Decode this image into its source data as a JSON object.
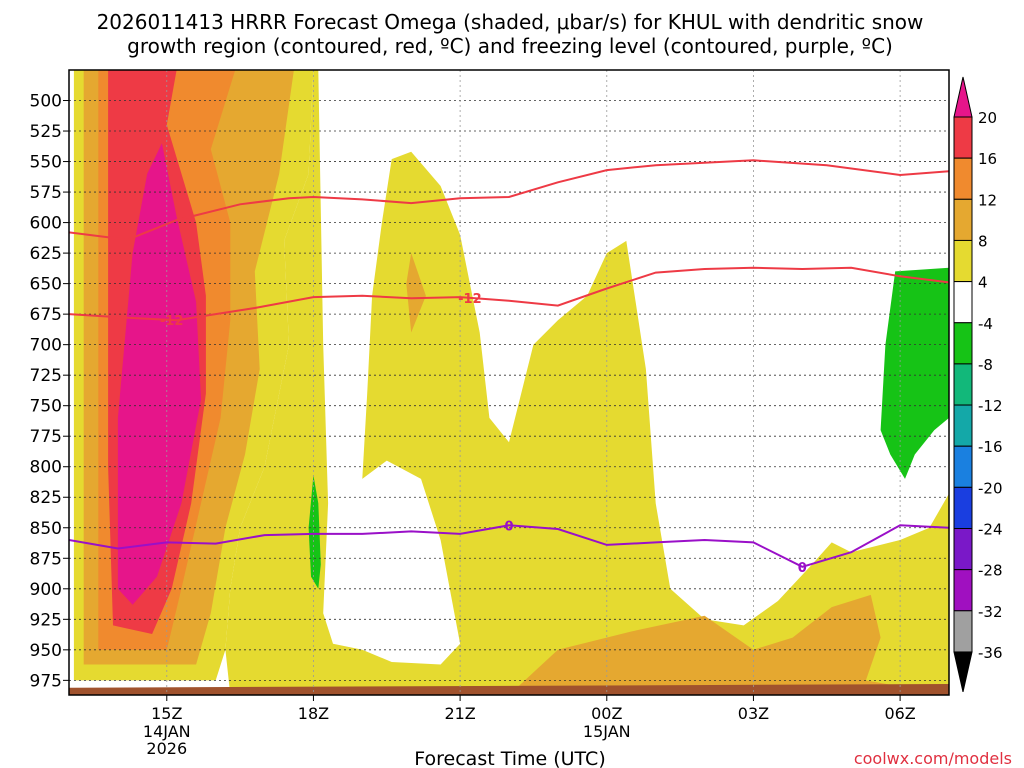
{
  "chart_data": {
    "type": "contour-crosssection",
    "title_line1": "2026011413 HRRR Forecast Omega (shaded, μbar/s) for KHUL with dendritic snow",
    "title_line2": "growth region (contoured, red, ºC) and freezing level (contoured, purple, ºC)",
    "xlabel": "Forecast Time (UTC)",
    "credit": "coolwx.com/models",
    "x_range_hours": [
      13.0,
      31.0
    ],
    "x_ticks": [
      {
        "hour": 15,
        "label": "15Z",
        "sub1": "14JAN",
        "sub2": "2026"
      },
      {
        "hour": 18,
        "label": "18Z",
        "sub1": "",
        "sub2": ""
      },
      {
        "hour": 21,
        "label": "21Z",
        "sub1": "",
        "sub2": ""
      },
      {
        "hour": 24,
        "label": "00Z",
        "sub1": "15JAN",
        "sub2": ""
      },
      {
        "hour": 27,
        "label": "03Z",
        "sub1": "",
        "sub2": ""
      },
      {
        "hour": 30,
        "label": "06Z",
        "sub1": "",
        "sub2": ""
      }
    ],
    "y_range_hPa": [
      475,
      987
    ],
    "y_ticks": [
      500,
      525,
      550,
      575,
      600,
      625,
      650,
      675,
      700,
      725,
      750,
      775,
      800,
      825,
      850,
      875,
      900,
      925,
      950,
      975
    ],
    "colorbar": {
      "labels": [
        "20",
        "16",
        "12",
        "8",
        "4",
        "-4",
        "-8",
        "-12",
        "-16",
        "-20",
        "-24",
        "-28",
        "-32",
        "-36"
      ],
      "colors": [
        "#ee3a45",
        "#f08a2e",
        "#e5a830",
        "#e5da30",
        "#ffffff",
        "#16c316",
        "#12b87a",
        "#14a8a8",
        "#1a80e0",
        "#1a3ee0",
        "#7a18c8",
        "#a010c0",
        "#a0a0a0"
      ],
      "top_color": "#e6158a",
      "bottom_color": "#000000"
    },
    "series": [
      {
        "name": "-12 C isotherm (upper)",
        "color": "#ee3a45",
        "points": [
          [
            13.0,
            608
          ],
          [
            14.2,
            614
          ],
          [
            15.2,
            598
          ],
          [
            16.5,
            585
          ],
          [
            17.5,
            580
          ],
          [
            18.0,
            579
          ],
          [
            19.0,
            581
          ],
          [
            20.0,
            584
          ],
          [
            21.0,
            580
          ],
          [
            22.0,
            579
          ],
          [
            23.0,
            567
          ],
          [
            24.0,
            557
          ],
          [
            25.0,
            553
          ],
          [
            27.0,
            549
          ],
          [
            28.5,
            553
          ],
          [
            30.0,
            561
          ],
          [
            31.0,
            558
          ]
        ]
      },
      {
        "name": "-12 C isotherm (lower)",
        "color": "#ee3a45",
        "label": "-12",
        "points": [
          [
            13.0,
            675
          ],
          [
            14.2,
            678
          ],
          [
            15.2,
            680
          ],
          [
            16.8,
            670
          ],
          [
            18.0,
            661
          ],
          [
            19.0,
            660
          ],
          [
            20.0,
            662
          ],
          [
            21.0,
            661
          ],
          [
            22.0,
            664
          ],
          [
            23.0,
            668
          ],
          [
            24.0,
            654
          ],
          [
            25.0,
            641
          ],
          [
            26.0,
            638
          ],
          [
            27.0,
            637
          ],
          [
            28.0,
            638
          ],
          [
            29.0,
            637
          ],
          [
            30.0,
            644
          ],
          [
            31.0,
            649
          ]
        ]
      },
      {
        "name": "0 C freezing level",
        "color": "#9a10c8",
        "label": "0",
        "points": [
          [
            13.0,
            860
          ],
          [
            14.0,
            867
          ],
          [
            15.0,
            862
          ],
          [
            16.0,
            863
          ],
          [
            17.0,
            856
          ],
          [
            18.0,
            855
          ],
          [
            19.0,
            855
          ],
          [
            20.0,
            853
          ],
          [
            21.0,
            855
          ],
          [
            22.0,
            848
          ],
          [
            23.0,
            851
          ],
          [
            24.0,
            864
          ],
          [
            25.0,
            862
          ],
          [
            26.0,
            860
          ],
          [
            27.0,
            862
          ],
          [
            28.0,
            882
          ],
          [
            29.0,
            870
          ],
          [
            30.0,
            848
          ],
          [
            31.0,
            850
          ]
        ]
      }
    ],
    "shaded_regions": [
      {
        "category": "4 to 8",
        "color": "#e5da30",
        "points": [
          [
            13.1,
            475
          ],
          [
            18.0,
            475
          ],
          [
            17.9,
            560
          ],
          [
            17.4,
            615
          ],
          [
            17.5,
            700
          ],
          [
            17.2,
            760
          ],
          [
            17.0,
            800
          ],
          [
            16.5,
            850
          ],
          [
            16.3,
            900
          ],
          [
            16.2,
            950
          ],
          [
            16.0,
            975
          ],
          [
            13.1,
            975
          ]
        ]
      },
      {
        "category": "8 to 12",
        "color": "#e5a830",
        "points": [
          [
            13.3,
            475
          ],
          [
            17.6,
            475
          ],
          [
            17.3,
            560
          ],
          [
            16.8,
            640
          ],
          [
            16.9,
            720
          ],
          [
            16.6,
            790
          ],
          [
            16.2,
            850
          ],
          [
            15.9,
            920
          ],
          [
            15.6,
            962
          ],
          [
            13.3,
            962
          ]
        ]
      },
      {
        "category": "12 to 16",
        "color": "#f08a2e",
        "points": [
          [
            13.6,
            475
          ],
          [
            16.4,
            475
          ],
          [
            15.9,
            540
          ],
          [
            16.3,
            600
          ],
          [
            16.3,
            680
          ],
          [
            16.1,
            760
          ],
          [
            15.7,
            830
          ],
          [
            15.3,
            900
          ],
          [
            15.0,
            950
          ],
          [
            13.6,
            950
          ]
        ]
      },
      {
        "category": "16 to 20",
        "color": "#ee3a45",
        "points": [
          [
            13.8,
            475
          ],
          [
            15.2,
            475
          ],
          [
            15.0,
            520
          ],
          [
            15.6,
            600
          ],
          [
            15.8,
            660
          ],
          [
            15.8,
            740
          ],
          [
            15.5,
            830
          ],
          [
            15.1,
            900
          ],
          [
            14.7,
            937
          ],
          [
            13.9,
            930
          ],
          [
            13.8,
            800
          ]
        ]
      },
      {
        "category": "> 20",
        "color": "#e6158a",
        "points": [
          [
            14.9,
            535
          ],
          [
            15.2,
            595
          ],
          [
            15.6,
            665
          ],
          [
            15.7,
            745
          ],
          [
            15.3,
            830
          ],
          [
            14.8,
            890
          ],
          [
            14.3,
            913
          ],
          [
            14.0,
            900
          ],
          [
            14.0,
            760
          ],
          [
            14.3,
            625
          ],
          [
            14.6,
            560
          ]
        ]
      },
      {
        "category": "4 to 8",
        "color": "#e5da30",
        "points": [
          [
            19.6,
            548
          ],
          [
            20.0,
            542
          ],
          [
            20.6,
            570
          ],
          [
            21.0,
            610
          ],
          [
            21.4,
            690
          ],
          [
            21.6,
            760
          ],
          [
            22.0,
            780
          ],
          [
            22.5,
            700
          ],
          [
            23.0,
            680
          ],
          [
            23.6,
            660
          ],
          [
            24.0,
            625
          ],
          [
            24.4,
            615
          ],
          [
            24.8,
            720
          ],
          [
            25.0,
            830
          ],
          [
            25.3,
            900
          ],
          [
            26.0,
            925
          ],
          [
            26.8,
            930
          ],
          [
            27.5,
            910
          ],
          [
            28.2,
            880
          ],
          [
            28.6,
            862
          ],
          [
            29.0,
            870
          ],
          [
            30.0,
            860
          ],
          [
            30.6,
            850
          ],
          [
            31.0,
            822
          ],
          [
            31.0,
            987
          ],
          [
            16.3,
            987
          ],
          [
            16.2,
            950
          ],
          [
            16.3,
            900
          ],
          [
            16.5,
            850
          ],
          [
            17.0,
            800
          ],
          [
            17.2,
            760
          ],
          [
            17.5,
            700
          ],
          [
            17.4,
            615
          ],
          [
            17.9,
            560
          ],
          [
            18.0,
            475
          ],
          [
            18.1,
            475
          ],
          [
            18.2,
            700
          ],
          [
            18.3,
            830
          ],
          [
            18.2,
            920
          ],
          [
            18.4,
            945
          ],
          [
            19.0,
            950
          ],
          [
            19.6,
            960
          ],
          [
            20.6,
            962
          ],
          [
            21.0,
            945
          ],
          [
            20.6,
            860
          ],
          [
            20.2,
            810
          ],
          [
            19.5,
            795
          ],
          [
            19.0,
            810
          ],
          [
            19.1,
            740
          ],
          [
            19.2,
            660
          ],
          [
            19.4,
            600
          ]
        ]
      },
      {
        "category": "-4 to -8",
        "color": "#16c316",
        "points": [
          [
            29.9,
            640
          ],
          [
            31.0,
            637
          ],
          [
            31.0,
            760
          ],
          [
            30.7,
            770
          ],
          [
            30.3,
            790
          ],
          [
            30.1,
            810
          ],
          [
            29.8,
            790
          ],
          [
            29.6,
            770
          ],
          [
            29.7,
            700
          ]
        ]
      },
      {
        "category": "-4 to -8",
        "color": "#16c316",
        "points": [
          [
            18.0,
            807
          ],
          [
            18.1,
            830
          ],
          [
            18.15,
            880
          ],
          [
            18.1,
            900
          ],
          [
            17.95,
            890
          ],
          [
            17.9,
            850
          ]
        ]
      },
      {
        "category": "8 to 12",
        "color": "#e5a830",
        "points": [
          [
            20.0,
            625
          ],
          [
            20.3,
            660
          ],
          [
            20.0,
            690
          ],
          [
            19.9,
            650
          ]
        ]
      },
      {
        "category": "8 to 12",
        "color": "#e5a830",
        "points": [
          [
            22.0,
            987
          ],
          [
            23.0,
            950
          ],
          [
            24.5,
            935
          ],
          [
            26.0,
            922
          ],
          [
            27.0,
            950
          ],
          [
            27.8,
            940
          ],
          [
            28.6,
            915
          ],
          [
            29.4,
            905
          ],
          [
            29.6,
            940
          ],
          [
            29.3,
            975
          ],
          [
            31.0,
            987
          ]
        ]
      },
      {
        "category": "terrain",
        "color": "#a0522d",
        "points": [
          [
            13.0,
            981
          ],
          [
            31.0,
            978
          ],
          [
            31.0,
            987
          ],
          [
            13.0,
            987
          ]
        ]
      }
    ]
  }
}
